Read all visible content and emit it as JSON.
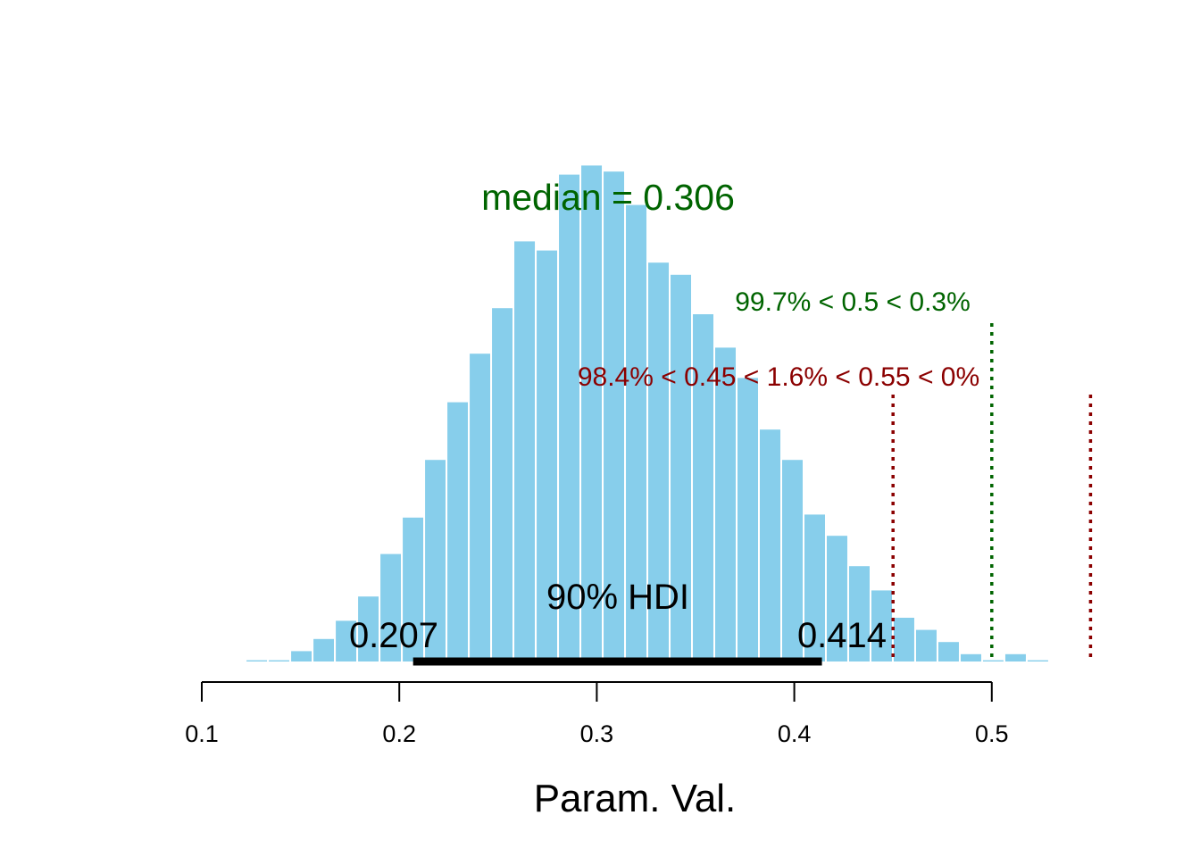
{
  "chart_data": {
    "type": "bar",
    "xlabel": "Param. Val.",
    "xlim": [
      0.1,
      0.55
    ],
    "x_ticks": [
      0.1,
      0.2,
      0.3,
      0.4,
      0.5
    ],
    "x_tick_labels": [
      "0.1",
      "0.2",
      "0.3",
      "0.4",
      "0.5"
    ],
    "bin_width": 0.0113,
    "bins": [
      {
        "x0": 0.1222,
        "count": 1
      },
      {
        "x0": 0.1335,
        "count": 1
      },
      {
        "x0": 0.1448,
        "count": 4
      },
      {
        "x0": 0.1561,
        "count": 8
      },
      {
        "x0": 0.1674,
        "count": 14
      },
      {
        "x0": 0.1787,
        "count": 22
      },
      {
        "x0": 0.19,
        "count": 36
      },
      {
        "x0": 0.2013,
        "count": 48
      },
      {
        "x0": 0.2126,
        "count": 67
      },
      {
        "x0": 0.2239,
        "count": 86
      },
      {
        "x0": 0.2352,
        "count": 102
      },
      {
        "x0": 0.2465,
        "count": 117
      },
      {
        "x0": 0.2578,
        "count": 139
      },
      {
        "x0": 0.2691,
        "count": 136
      },
      {
        "x0": 0.2804,
        "count": 161
      },
      {
        "x0": 0.2917,
        "count": 164
      },
      {
        "x0": 0.303,
        "count": 162
      },
      {
        "x0": 0.3143,
        "count": 151
      },
      {
        "x0": 0.3256,
        "count": 132
      },
      {
        "x0": 0.3369,
        "count": 128
      },
      {
        "x0": 0.3482,
        "count": 115
      },
      {
        "x0": 0.3595,
        "count": 104
      },
      {
        "x0": 0.3708,
        "count": 94
      },
      {
        "x0": 0.3821,
        "count": 77
      },
      {
        "x0": 0.3934,
        "count": 67
      },
      {
        "x0": 0.4047,
        "count": 49
      },
      {
        "x0": 0.416,
        "count": 42
      },
      {
        "x0": 0.4273,
        "count": 32
      },
      {
        "x0": 0.4386,
        "count": 24
      },
      {
        "x0": 0.4499,
        "count": 15
      },
      {
        "x0": 0.4612,
        "count": 11
      },
      {
        "x0": 0.4725,
        "count": 7
      },
      {
        "x0": 0.4838,
        "count": 3
      },
      {
        "x0": 0.4951,
        "count": 1
      },
      {
        "x0": 0.5064,
        "count": 3
      },
      {
        "x0": 0.5177,
        "count": 1
      },
      {
        "x0": 0.529,
        "count": 0
      },
      {
        "x0": 0.5403,
        "count": 0.3
      }
    ],
    "bar_color": "#87CEEB",
    "median": {
      "value": 0.306,
      "label": "median = 0.306",
      "color": "#006400"
    },
    "hdi": {
      "low": 0.207,
      "high": 0.414,
      "label": "90% HDI",
      "low_label": "0.207",
      "high_label": "0.414",
      "color": "#000000"
    },
    "comparison": {
      "value": 0.5,
      "label": "99.7% < 0.5 < 0.3%",
      "color": "#006400"
    },
    "rope": {
      "low": 0.45,
      "high": 0.55,
      "label": "98.4% < 0.45 < 1.6% < 0.55 < 0%",
      "color": "#8B0000"
    }
  }
}
